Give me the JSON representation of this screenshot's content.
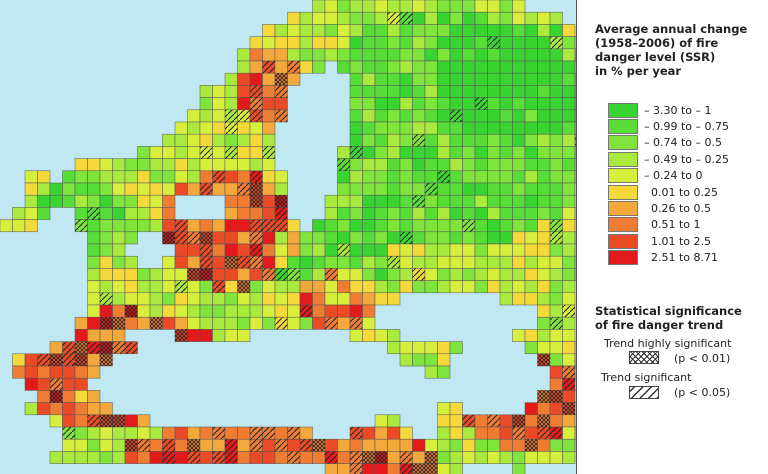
{
  "legend": {
    "title": "Average annual change\n(1958–2006) of fire\ndanger level (SSR)\nin % per year",
    "classes": [
      {
        "label": "– 3.30 to – 1",
        "color": "#39d431"
      },
      {
        "label": "– 0.99 to – 0.75",
        "color": "#57dc38"
      },
      {
        "label": "– 0.74 to – 0.5",
        "color": "#7fe43c"
      },
      {
        "label": "– 0.49 to – 0.25",
        "color": "#aaea3e"
      },
      {
        "label": "– 0.24 to 0",
        "color": "#d8ee3c"
      },
      {
        "label": "  0.01 to 0.25",
        "color": "#f5d83a"
      },
      {
        "label": "  0.26 to 0.5",
        "color": "#f2a83a"
      },
      {
        "label": "  0.51 to 1",
        "color": "#ee7d33"
      },
      {
        "label": "  1.01 to 2.5",
        "color": "#ea4a26"
      },
      {
        "label": "  2.51 to 8.71",
        "color": "#e31a1c"
      }
    ]
  },
  "significance": {
    "title": "Statistical significance\nof fire danger trend",
    "high_label": "Trend highly significant",
    "high_p": "(p <  0.01)",
    "sig_label": "Trend significant",
    "sig_p": "(p < 0.05)"
  },
  "map": {
    "sea_color": "#bfe8f3",
    "grid_line_color": "#555555"
  }
}
